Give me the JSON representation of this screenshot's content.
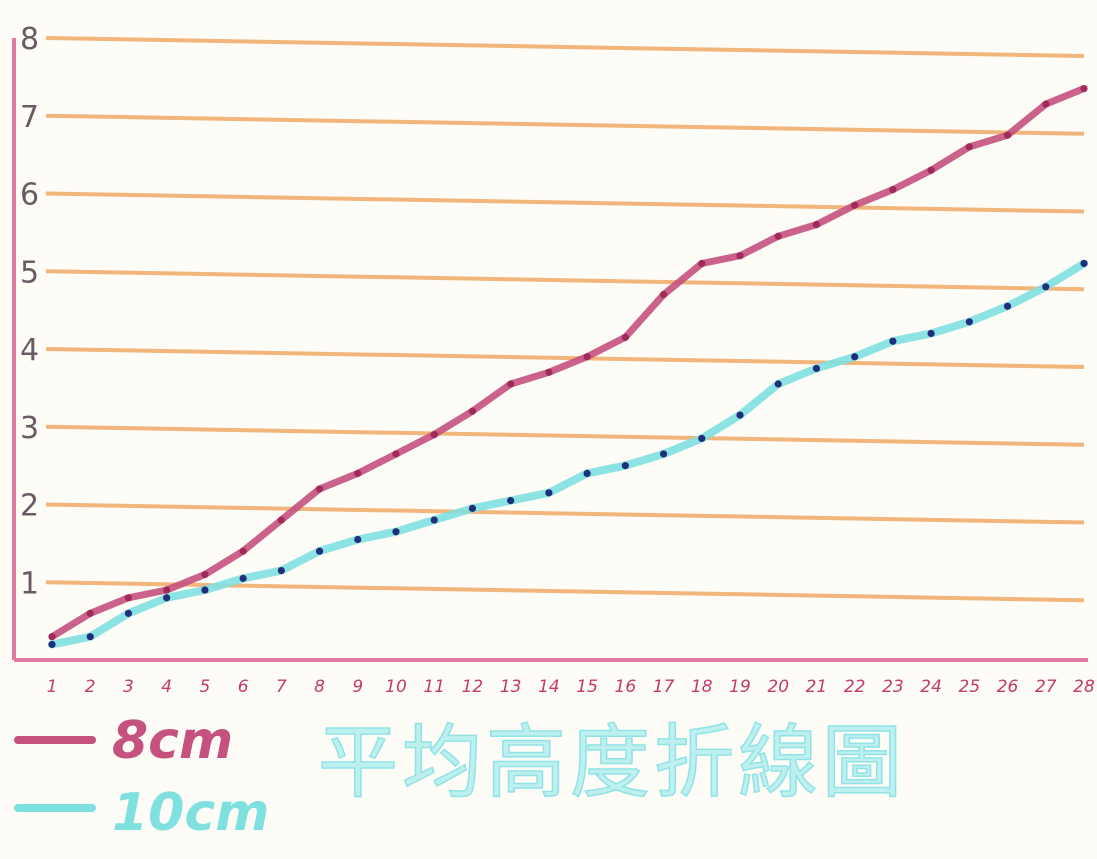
{
  "chart_data": {
    "type": "line",
    "title": "平均高度折線圖",
    "xlabel": "",
    "ylabel": "",
    "x": [
      1,
      2,
      3,
      4,
      5,
      6,
      7,
      8,
      9,
      10,
      11,
      12,
      13,
      14,
      15,
      16,
      17,
      18,
      19,
      20,
      21,
      22,
      23,
      24,
      25,
      26,
      27,
      28
    ],
    "xlim": [
      1,
      28
    ],
    "ylim": [
      0,
      8
    ],
    "yticks": [
      "1",
      "2",
      "3",
      "4",
      "5",
      "6",
      "7",
      "8"
    ],
    "xticks": [
      "1",
      "2",
      "3",
      "4",
      "5",
      "6",
      "7",
      "8",
      "9",
      "10",
      "11",
      "12",
      "13",
      "14",
      "15",
      "16",
      "17",
      "18",
      "19",
      "20",
      "21",
      "22",
      "23",
      "24",
      "25",
      "26",
      "27",
      "28"
    ],
    "grid": true,
    "legend_position": "bottom-left",
    "series": [
      {
        "name": "8cm",
        "color": "#c4517e",
        "values": [
          0.3,
          0.6,
          0.8,
          0.9,
          1.1,
          1.4,
          1.8,
          2.2,
          2.4,
          2.65,
          2.9,
          3.2,
          3.55,
          3.7,
          3.9,
          4.15,
          4.7,
          5.1,
          5.2,
          5.45,
          5.6,
          5.85,
          6.05,
          6.3,
          6.6,
          6.75,
          7.15,
          7.35
        ]
      },
      {
        "name": "10cm",
        "color": "#7fe0e0",
        "point_color": "#1f2f7a",
        "values": [
          0.2,
          0.3,
          0.6,
          0.8,
          0.9,
          1.05,
          1.15,
          1.4,
          1.55,
          1.65,
          1.8,
          1.95,
          2.05,
          2.15,
          2.4,
          2.5,
          2.65,
          2.85,
          3.15,
          3.55,
          3.75,
          3.9,
          4.1,
          4.2,
          4.35,
          4.55,
          4.8,
          5.1
        ]
      }
    ]
  },
  "colors": {
    "grid": "#f0a866",
    "axis": "#e07aa0",
    "background": "#fdfcf7"
  }
}
